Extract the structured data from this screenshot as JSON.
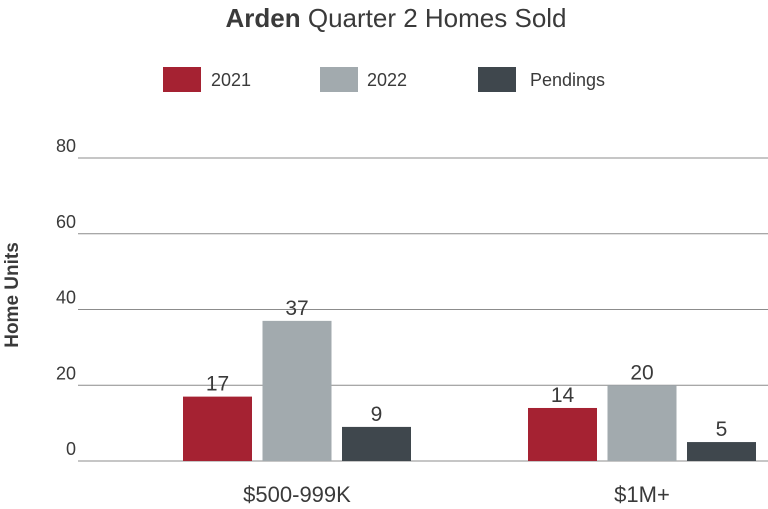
{
  "chart_data": {
    "type": "bar",
    "title_bold": "Arden",
    "title_rest": "Quarter 2 Homes Sold",
    "ylabel": "Home Units",
    "xlabel": "",
    "ylim": [
      0,
      80
    ],
    "yticks": [
      0,
      20,
      40,
      60,
      80
    ],
    "categories": [
      "$500-999K",
      "$1M+"
    ],
    "series": [
      {
        "name": "2021",
        "color": "#a52232",
        "values": [
          17,
          14
        ]
      },
      {
        "name": "2022",
        "color": "#a2aaae",
        "values": [
          37,
          20
        ]
      },
      {
        "name": "Pendings",
        "color": "#3f474d",
        "values": [
          9,
          5
        ]
      }
    ],
    "legend_position": "top",
    "grid": true,
    "data_labels": true
  }
}
